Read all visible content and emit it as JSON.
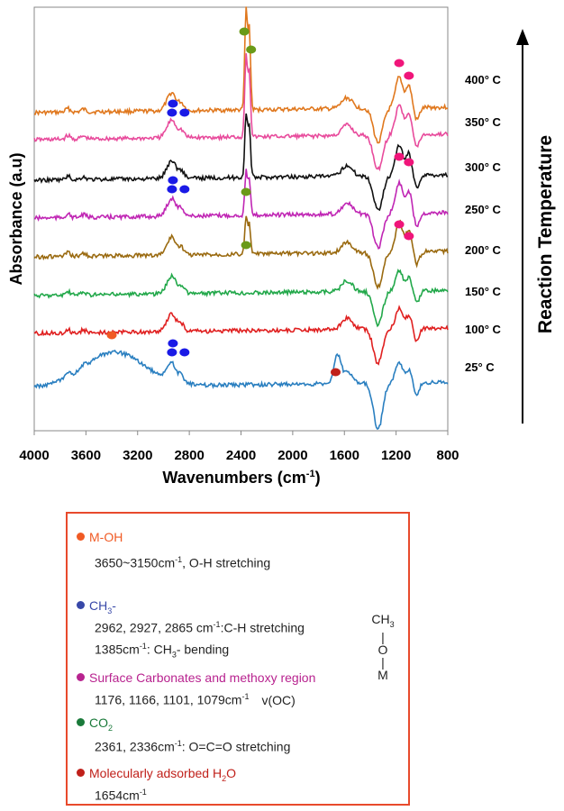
{
  "chart_data": {
    "type": "line",
    "xlabel_main": "Wavenumbers (cm",
    "xlabel_sup": "-1",
    "xlabel_end": ")",
    "ylabel": "Absorbance (a.u)",
    "right_title": "Reaction Temperature",
    "xlim": [
      4000,
      800
    ],
    "x_ticks": [
      "4000",
      "3600",
      "3200",
      "2800",
      "2400",
      "2000",
      "1600",
      "1200",
      "800"
    ],
    "grid": false,
    "series": [
      {
        "name": "400° C",
        "color": "#e0781e"
      },
      {
        "name": "350° C",
        "color": "#e84b9c"
      },
      {
        "name": "300° C",
        "color": "#111111"
      },
      {
        "name": "250° C",
        "color": "#c026b4"
      },
      {
        "name": "200° C",
        "color": "#9a6a10"
      },
      {
        "name": "150° C",
        "color": "#22a84a"
      },
      {
        "name": "100° C",
        "color": "#e02020"
      },
      {
        "name": "25° C",
        "color": "#2a7fc0"
      }
    ],
    "markers": [
      {
        "label": "M-OH",
        "color": "#f05a24",
        "x": [
          3400
        ]
      },
      {
        "label": "CH3-",
        "color": "#1a1ae6",
        "x": [
          2962,
          2927,
          2865
        ]
      },
      {
        "label": "Surface Carbonates and methoxy region",
        "color": "#f0157a",
        "x": [
          1176,
          1101
        ]
      },
      {
        "label": "CO2",
        "color": "#6a9a18",
        "x": [
          2361,
          2336
        ]
      },
      {
        "label": "Molecularly adsorbed H2O",
        "color": "#c0201a",
        "x": [
          1654
        ]
      }
    ]
  },
  "legend": {
    "moh": {
      "title": "M-OH",
      "color": "#f05a24",
      "line1a": "3650~3150cm",
      "line1sup": "-1",
      "line1b": ", O-H stretching"
    },
    "ch3": {
      "title_a": "CH",
      "title_sub": "3",
      "title_b": "-",
      "color": "#3848a8",
      "line1a": "2962, 2927, 2865 cm",
      "line1sup": "-1",
      "line1b": ":C-H stretching",
      "line2a": "1385cm",
      "line2sup": "-1",
      "line2b": ": CH",
      "line2sub": "3",
      "line2c": "- bending"
    },
    "carb": {
      "title": "Surface Carbonates and methoxy region",
      "color": "#b8238f",
      "line1a": "1176, 1166, 1101, 1079cm",
      "line1sup": "-1",
      "line1b": "v(OC)"
    },
    "co2": {
      "title_a": "CO",
      "title_sub": "2",
      "color": "#1a7a3a",
      "line1a": "2361, 2336cm",
      "line1sup": "-1",
      "line1b": ": O=C=O stretching"
    },
    "h2o": {
      "title_a": "Molecularly adsorbed H",
      "title_sub": "2",
      "title_b": "O",
      "color": "#c0201a",
      "line1a": "1654cm",
      "line1sup": "-1"
    },
    "structure": {
      "top_a": "CH",
      "top_sub": "3",
      "bar1": "|",
      "mid": "O",
      "bar2": "|",
      "bottom": "M"
    }
  }
}
